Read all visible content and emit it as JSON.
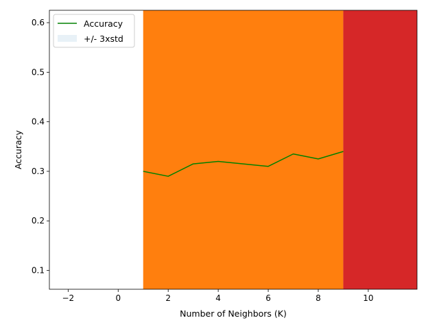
{
  "chart_data": {
    "type": "line",
    "xlabel": "Number of Neighbors (K)",
    "ylabel": "Accuracy",
    "xlim": [
      -2.75,
      11.95
    ],
    "ylim": [
      0.062,
      0.625
    ],
    "xticks": [
      -2,
      0,
      2,
      4,
      6,
      8,
      10
    ],
    "xtick_labels": [
      "−2",
      "0",
      "2",
      "4",
      "6",
      "8",
      "10"
    ],
    "yticks": [
      0.1,
      0.2,
      0.3,
      0.4,
      0.5,
      0.6
    ],
    "ytick_labels": [
      "0.1",
      "0.2",
      "0.3",
      "0.4",
      "0.5",
      "0.6"
    ],
    "grid": false,
    "legend_position": "top-left",
    "series": [
      {
        "name": "Accuracy",
        "color": "#008000",
        "x": [
          1,
          2,
          3,
          4,
          5,
          6,
          7,
          8,
          9
        ],
        "values": [
          0.3,
          0.29,
          0.315,
          0.32,
          0.315,
          0.31,
          0.335,
          0.325,
          0.34
        ]
      }
    ],
    "band": {
      "name": "+/- 3xstd",
      "color": "#1f77b4",
      "opacity": 0.1
    },
    "spans": [
      {
        "x0": 1,
        "x1": 9,
        "color": "#ff7f0e"
      },
      {
        "x0": 9,
        "x1": 11.95,
        "color": "#d62728"
      }
    ]
  }
}
